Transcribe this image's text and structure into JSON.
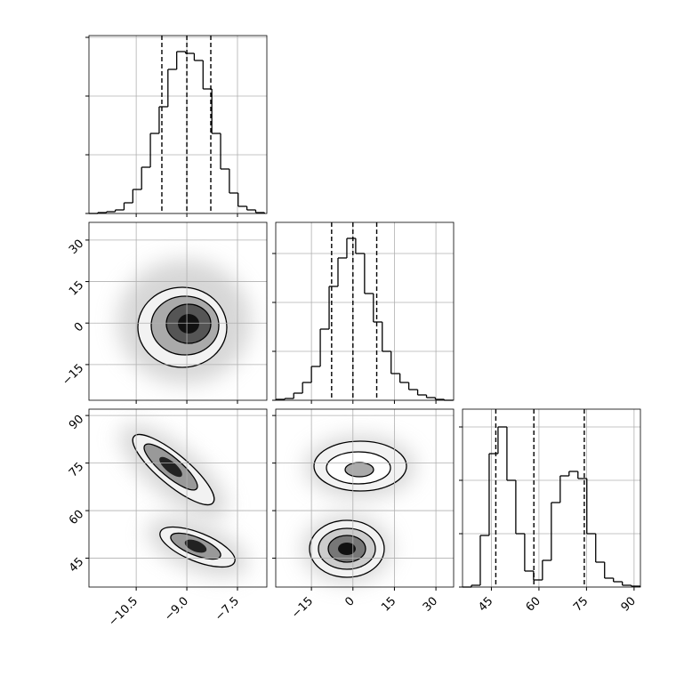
{
  "chart_data": {
    "type": "corner",
    "params": [
      {
        "lim": [
          -11.9,
          -6.63
        ],
        "ticks": [
          {
            "value": -10.5,
            "label": "−10.5"
          },
          {
            "value": -9.0,
            "label": "−9.0"
          },
          {
            "value": -7.5,
            "label": "−7.5"
          }
        ]
      },
      {
        "lim": [
          -27.9,
          36.4
        ],
        "ticks": [
          {
            "value": -15,
            "label": "−15"
          },
          0,
          15,
          30
        ]
      },
      {
        "lim": [
          35.9,
          92.0
        ],
        "ticks": [
          45,
          60,
          75,
          90
        ]
      }
    ],
    "histograms": [
      {
        "bins": [
          -11.9,
          -11.64,
          -11.38,
          -11.12,
          -10.86,
          -10.6,
          -10.34,
          -10.08,
          -9.82,
          -9.56,
          -9.3,
          -9.04,
          -8.78,
          -8.52,
          -8.26,
          -8.0,
          -7.74,
          -7.48,
          -7.22,
          -6.96,
          -6.7
        ],
        "counts": [
          0,
          1,
          2,
          4,
          12,
          27,
          52,
          90,
          120,
          162,
          182,
          180,
          172,
          140,
          90,
          50,
          23,
          8,
          4,
          1
        ],
        "quantiles": [
          -9.74,
          -9.0,
          -8.29
        ],
        "ylim": [
          0,
          200
        ],
        "yticks": [
          0,
          66,
          132,
          198
        ]
      },
      {
        "bins": [
          -27.8,
          -24.6,
          -21.4,
          -18.2,
          -15.0,
          -11.8,
          -8.6,
          -5.4,
          -2.2,
          1.0,
          4.2,
          7.4,
          10.6,
          13.8,
          17.0,
          20.2,
          23.4,
          26.6,
          29.8,
          33.0,
          36.2
        ],
        "counts": [
          1,
          2,
          8,
          20,
          38,
          80,
          128,
          160,
          182,
          165,
          120,
          88,
          55,
          30,
          20,
          12,
          6,
          3,
          1,
          0
        ],
        "quantiles": [
          -7.7,
          0,
          8.6
        ],
        "ylim": [
          0,
          200
        ],
        "yticks": [
          0,
          55,
          110,
          165
        ]
      },
      {
        "bins": [
          35.9,
          38.7,
          41.5,
          44.3,
          47.1,
          49.9,
          52.7,
          55.5,
          58.3,
          61.1,
          63.9,
          66.7,
          69.5,
          72.3,
          75.1,
          77.9,
          80.7,
          83.5,
          86.3,
          89.1,
          91.9
        ],
        "counts": [
          0,
          2,
          58,
          150,
          180,
          120,
          60,
          18,
          8,
          30,
          95,
          125,
          130,
          122,
          60,
          28,
          10,
          6,
          2,
          1
        ],
        "quantiles": [
          46.4,
          58.4,
          74.3
        ],
        "ylim": [
          0,
          200
        ],
        "yticks": [
          0,
          60,
          120,
          180
        ]
      }
    ]
  }
}
